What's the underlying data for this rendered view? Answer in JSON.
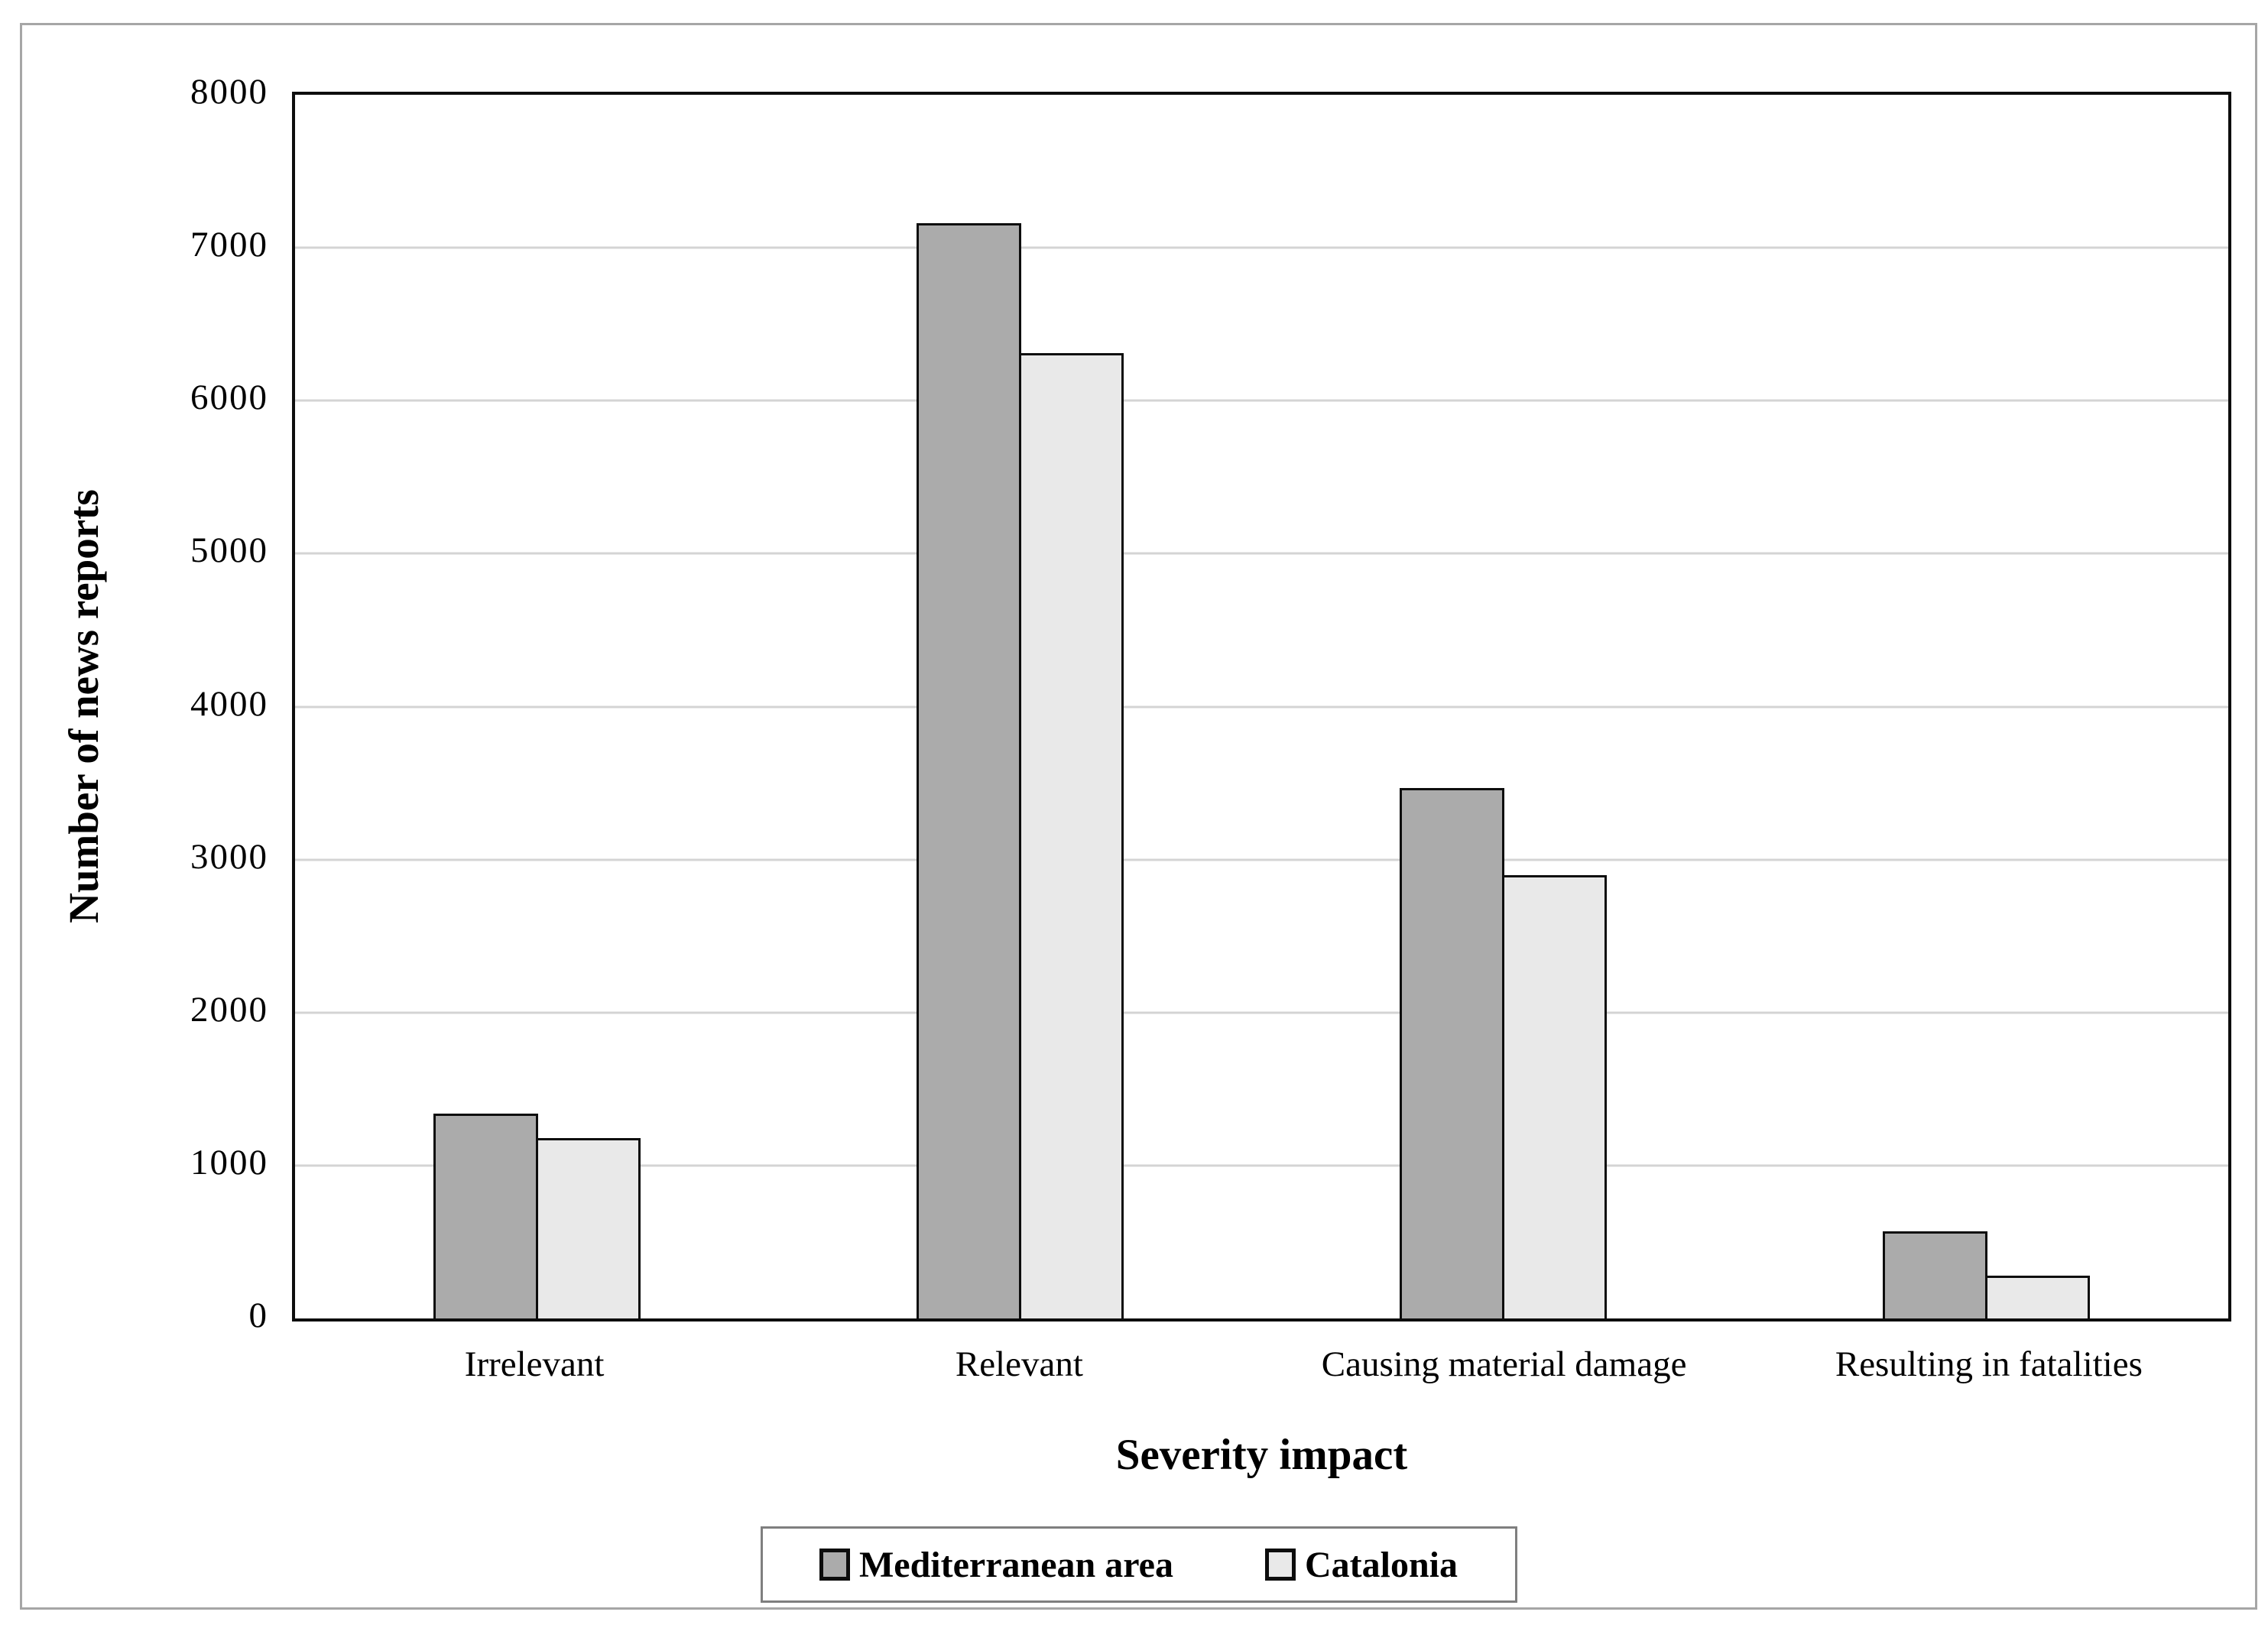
{
  "chart_data": {
    "type": "bar",
    "title": "",
    "categories": [
      "Irrelevant",
      "Relevant",
      "Causing material damage",
      "Resulting in fatalities"
    ],
    "series": [
      {
        "name": "Mediterranean area",
        "color": "#ababab",
        "values": [
          1340,
          7160,
          3470,
          570
        ]
      },
      {
        "name": "Catalonia",
        "color": "#e9e9e9",
        "values": [
          1180,
          6310,
          2900,
          280
        ]
      }
    ],
    "xlabel": "Severity impact",
    "ylabel": "Number of news reports",
    "ylim": [
      0,
      8000
    ],
    "yticks": [
      0,
      1000,
      2000,
      3000,
      4000,
      5000,
      6000,
      7000,
      8000
    ],
    "grid": "horizontal gridlines at each 1000",
    "legend_position": "bottom center, boxed"
  },
  "styles": {
    "gridline_color": "#d4d4d4",
    "plot_border_color": "#0d0d0d",
    "bar_border_color": "#0d0d0d",
    "figure_border_color": "#a6a6a6",
    "legend_border_color": "#7f7f7f",
    "text_color": "#000000",
    "background_color": "#ffffff"
  }
}
